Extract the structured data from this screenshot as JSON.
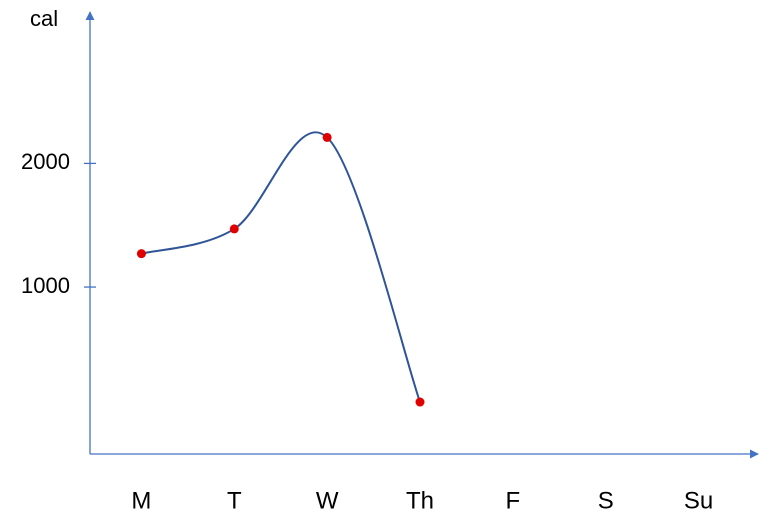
{
  "chart_data": {
    "type": "line",
    "ylabel": "cal",
    "categories": [
      "M",
      "T",
      "W",
      "Th",
      "F",
      "S",
      "Su"
    ],
    "values": [
      1270,
      1470,
      2210,
      70,
      null,
      null,
      null
    ],
    "line_color": "#2f5597",
    "marker_color": "#e00000",
    "axis_color": "#4472c4",
    "ylim": [
      -350,
      3200
    ],
    "yticks": [
      1000,
      2000
    ]
  }
}
